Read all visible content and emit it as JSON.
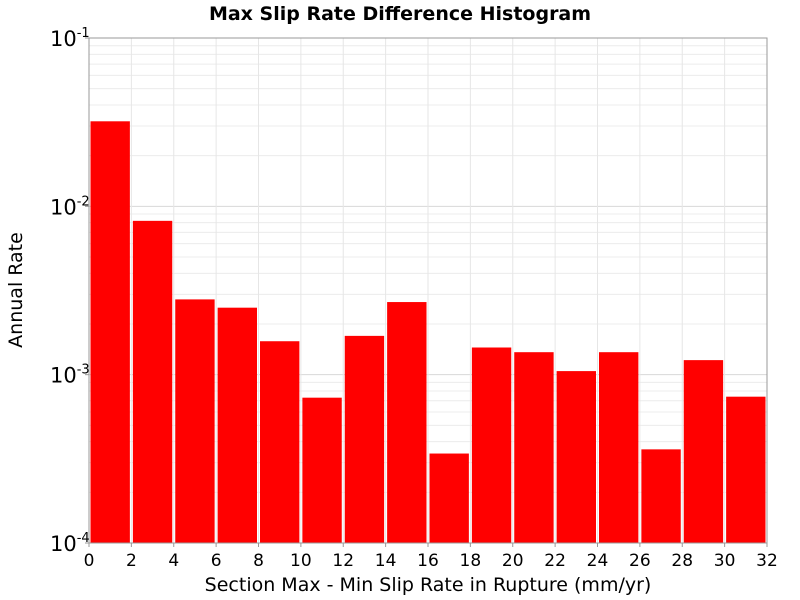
{
  "chart_data": {
    "type": "bar",
    "title": "Max Slip Rate Difference Histogram",
    "xlabel": "Section Max - Min Slip Rate in Rupture (mm/yr)",
    "ylabel": "Annual Rate",
    "xlim": [
      0,
      32
    ],
    "ylim": [
      0.0001,
      0.1
    ],
    "yscale": "log",
    "grid": true,
    "bar_color": "#ff0000",
    "bin_width": 2,
    "x": [
      1,
      3,
      5,
      7,
      9,
      11,
      13,
      15,
      17,
      19,
      21,
      23,
      25,
      27,
      29,
      31
    ],
    "values": [
      0.032,
      0.0082,
      0.0028,
      0.0025,
      0.00158,
      0.00073,
      0.0017,
      0.0027,
      0.00034,
      0.00145,
      0.00136,
      0.00105,
      0.00136,
      0.00036,
      0.00122,
      0.00074
    ],
    "x_ticks": [
      "0",
      "2",
      "4",
      "6",
      "8",
      "10",
      "12",
      "14",
      "16",
      "18",
      "20",
      "22",
      "24",
      "26",
      "28",
      "30",
      "32"
    ],
    "y_ticks": [
      {
        "base": "10",
        "exp": "-4"
      },
      {
        "base": "10",
        "exp": "-3"
      },
      {
        "base": "10",
        "exp": "-2"
      },
      {
        "base": "10",
        "exp": "-1"
      }
    ]
  }
}
